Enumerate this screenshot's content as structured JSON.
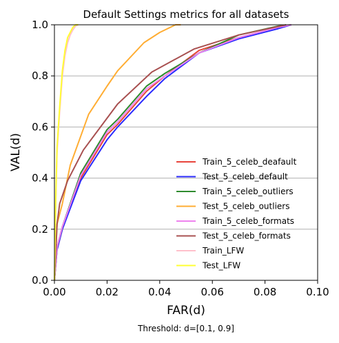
{
  "chart_data": {
    "type": "line",
    "title": "Default Settings metrics for all datasets",
    "xlabel": "FAR(d)",
    "ylabel": "VAL(d)",
    "caption": "Threshold: d=[0.1, 0.9]",
    "xlim": [
      0.0,
      0.1
    ],
    "ylim": [
      0.0,
      1.0
    ],
    "xticks": [
      "0.00",
      "0.02",
      "0.04",
      "0.06",
      "0.08",
      "0.10"
    ],
    "yticks": [
      "0.0",
      "0.2",
      "0.4",
      "0.6",
      "0.8",
      "1.0"
    ],
    "grid": "horizontal",
    "legend_position": "lower-right",
    "series": [
      {
        "name": "Train_5_celeb_deafault",
        "color": "#e8433a",
        "x": [
          0,
          0.001,
          0.003,
          0.01,
          0.02,
          0.024,
          0.035,
          0.042,
          0.055,
          0.07,
          0.085,
          0.09
        ],
        "y": [
          0,
          0.12,
          0.2,
          0.4,
          0.57,
          0.61,
          0.74,
          0.8,
          0.9,
          0.95,
          0.99,
          1.0
        ]
      },
      {
        "name": "Test_5_celeb_default",
        "color": "#2a2aff",
        "x": [
          0,
          0.001,
          0.003,
          0.01,
          0.02,
          0.024,
          0.035,
          0.042,
          0.055,
          0.07,
          0.085,
          0.09
        ],
        "y": [
          0,
          0.12,
          0.2,
          0.39,
          0.55,
          0.6,
          0.72,
          0.79,
          0.89,
          0.945,
          0.985,
          1.0
        ]
      },
      {
        "name": "Train_5_celeb_outliers",
        "color": "#2e8b2e",
        "x": [
          0,
          0.001,
          0.003,
          0.01,
          0.02,
          0.024,
          0.035,
          0.042,
          0.055,
          0.07,
          0.085,
          0.09
        ],
        "y": [
          0,
          0.13,
          0.21,
          0.42,
          0.59,
          0.63,
          0.76,
          0.81,
          0.89,
          0.96,
          0.995,
          1.0
        ]
      },
      {
        "name": "Test_5_celeb_outliers",
        "color": "#ffad33",
        "x": [
          0,
          0.001,
          0.003,
          0.006,
          0.013,
          0.02,
          0.024,
          0.034,
          0.04,
          0.046,
          0.048
        ],
        "y": [
          0,
          0.22,
          0.3,
          0.45,
          0.65,
          0.76,
          0.82,
          0.93,
          0.97,
          1.0,
          1.0
        ]
      },
      {
        "name": "Train_5_celeb_formats",
        "color": "#ee82ee",
        "x": [
          0,
          0.001,
          0.003,
          0.01,
          0.02,
          0.024,
          0.035,
          0.042,
          0.055,
          0.07,
          0.085,
          0.09
        ],
        "y": [
          0,
          0.13,
          0.21,
          0.41,
          0.58,
          0.62,
          0.75,
          0.8,
          0.89,
          0.95,
          0.99,
          1.0
        ]
      },
      {
        "name": "Test_5_celeb_formats",
        "color": "#a85050",
        "x": [
          0,
          0.001,
          0.002,
          0.005,
          0.011,
          0.024,
          0.037,
          0.045,
          0.053,
          0.07,
          0.088
        ],
        "y": [
          0,
          0.22,
          0.3,
          0.39,
          0.51,
          0.69,
          0.815,
          0.86,
          0.905,
          0.96,
          1.0
        ]
      },
      {
        "name": "Train_LFW",
        "color": "#ffc0cb",
        "x": [
          0,
          0.0005,
          0.001,
          0.002,
          0.003,
          0.004,
          0.005,
          0.006,
          0.007,
          0.008,
          0.009
        ],
        "y": [
          0,
          0.3,
          0.5,
          0.66,
          0.8,
          0.88,
          0.93,
          0.96,
          0.98,
          0.995,
          1.0
        ]
      },
      {
        "name": "Test_LFW",
        "color": "#ffff33",
        "x": [
          0,
          0.0005,
          0.001,
          0.002,
          0.003,
          0.004,
          0.005,
          0.006,
          0.007,
          0.008,
          0.009
        ],
        "y": [
          0,
          0.32,
          0.52,
          0.68,
          0.82,
          0.9,
          0.95,
          0.97,
          0.99,
          1.0,
          1.0
        ]
      }
    ]
  }
}
